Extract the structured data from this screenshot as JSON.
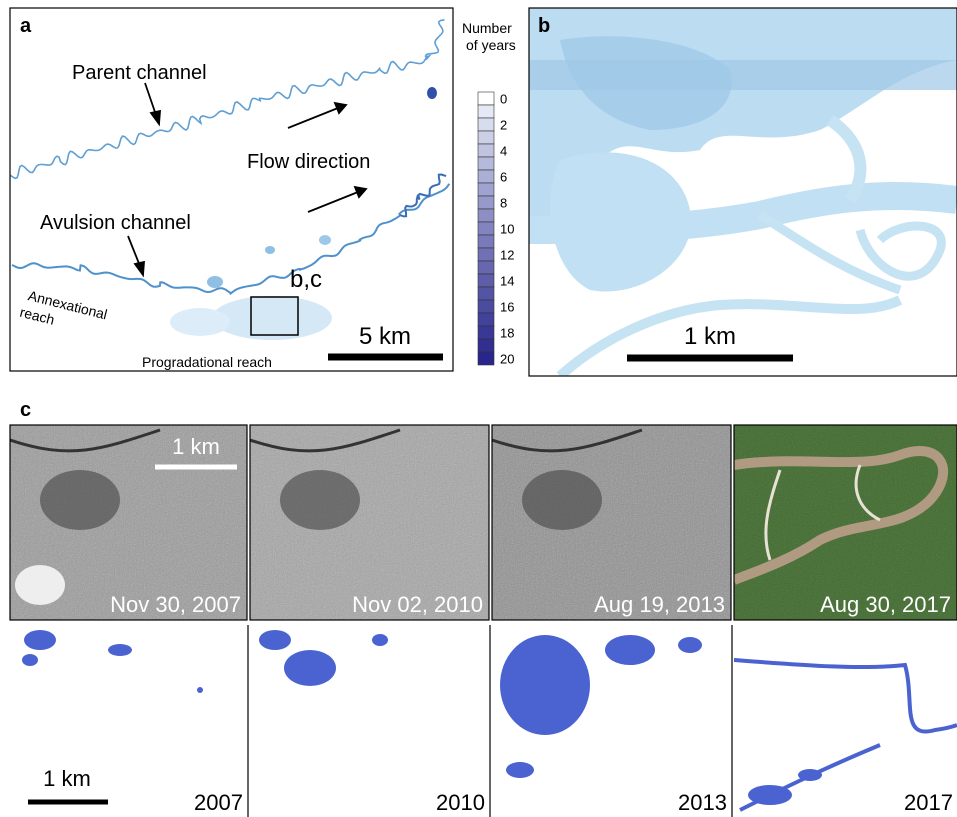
{
  "panel_a": {
    "label": "a",
    "parent_channel": "Parent channel",
    "flow_direction": "Flow direction",
    "avulsion_channel": "Avulsion channel",
    "annexational_reach": [
      "Annexational",
      "reach"
    ],
    "progradational_reach": "Progradational reach",
    "inset_label": "b,c",
    "scale_bar": "5 km"
  },
  "legend": {
    "title": [
      "Number",
      "of years"
    ],
    "ticks": [
      0,
      2,
      4,
      6,
      8,
      10,
      12,
      14,
      16,
      18,
      20
    ]
  },
  "panel_b": {
    "label": "b",
    "scale_bar": "1 km"
  },
  "panel_c": {
    "label": "c",
    "top_scale_bar": "1 km",
    "bottom_scale_bar": "1 km",
    "images": [
      {
        "date": "Nov 30, 2007",
        "year": 2007
      },
      {
        "date": "Nov 02, 2010",
        "year": 2010
      },
      {
        "date": "Aug 19, 2013",
        "year": 2013
      },
      {
        "date": "Aug 30, 2017",
        "year": 2017
      }
    ]
  }
}
